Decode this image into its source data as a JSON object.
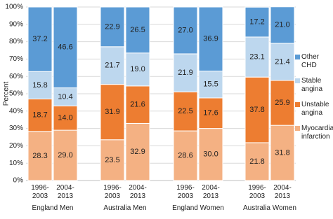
{
  "chart_data": {
    "type": "stacked_bar",
    "y_label": "Percent",
    "categories": [
      "1996-2003",
      "2004-2013",
      "1996-2003",
      "2004-2013",
      "1996-2003",
      "2004-2013",
      "1996-2003",
      "2004-2013"
    ],
    "groups": [
      "England Men",
      "Australia Men",
      "England Women",
      "Australia Women"
    ],
    "series": [
      {
        "name": "Myocardial infarction",
        "color": "#f4b183",
        "values": [
          28.3,
          29,
          23.5,
          32.9,
          28.6,
          30,
          21.8,
          31.8
        ],
        "value_labels": [
          "28.3",
          "29.0",
          "23.5",
          "32.9",
          "28.6",
          "30.0",
          "21.8",
          "31.8"
        ]
      },
      {
        "name": "Unstable angina",
        "color": "#ed7d31",
        "values": [
          18.7,
          14,
          31.9,
          21.6,
          22.5,
          17.6,
          37.8,
          25.9
        ],
        "value_labels": [
          "18.7",
          "14.0",
          "31.9",
          "21.6",
          "22.5",
          "17.6",
          "37.8",
          "25.9"
        ]
      },
      {
        "name": "Stable angina",
        "color": "#bdd7ee",
        "values": [
          15.8,
          10.4,
          21.7,
          19,
          21.9,
          15.5,
          23.1,
          21.4
        ],
        "value_labels": [
          "15.8",
          "10.4",
          "21.7",
          "19.0",
          "21.9",
          "15.5",
          "23.1",
          "21.4"
        ]
      },
      {
        "name": "Other CHD",
        "color": "#5b9bd5",
        "values": [
          37.2,
          46.6,
          22.9,
          26.5,
          27,
          36.9,
          17.2,
          21
        ],
        "value_labels": [
          "37.2",
          "46.6",
          "22.9",
          "26.5",
          "27.0",
          "36.9",
          "17.2",
          "21.0"
        ]
      }
    ],
    "ylim": [
      0,
      100
    ],
    "yticks": [
      {
        "value": 0,
        "label": "0%"
      },
      {
        "value": 10,
        "label": "10%"
      },
      {
        "value": 20,
        "label": "20%"
      },
      {
        "value": 30,
        "label": "30%"
      },
      {
        "value": 40,
        "label": "40%"
      },
      {
        "value": 50,
        "label": "50%"
      },
      {
        "value": 60,
        "label": "60%"
      },
      {
        "value": 70,
        "label": "70%"
      },
      {
        "value": 80,
        "label": "80%"
      },
      {
        "value": 90,
        "label": "90%"
      },
      {
        "value": 100,
        "label": "100%"
      }
    ],
    "grid": true
  }
}
